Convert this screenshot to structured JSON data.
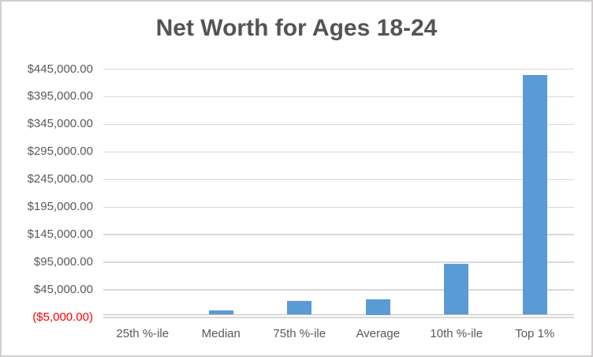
{
  "chart_data": {
    "type": "bar",
    "title": "Net Worth for Ages 18-24",
    "categories": [
      "25th %-ile",
      "Median",
      "75th %-ile",
      "Average",
      "10th %-ile",
      "Top 1%"
    ],
    "values": [
      0,
      8000,
      25500,
      27500,
      93000,
      434500
    ],
    "xlabel": "",
    "ylabel": "",
    "ylim": [
      -5000,
      445000
    ],
    "y_tick_step": 50000,
    "y_ticks": [
      {
        "value": 445000,
        "label": "$445,000.00"
      },
      {
        "value": 395000,
        "label": "$395,000.00"
      },
      {
        "value": 345000,
        "label": "$345,000.00"
      },
      {
        "value": 295000,
        "label": "$295,000.00"
      },
      {
        "value": 245000,
        "label": "$245,000.00"
      },
      {
        "value": 195000,
        "label": "$195,000.00"
      },
      {
        "value": 145000,
        "label": "$145,000.00"
      },
      {
        "value": 95000,
        "label": "$95,000.00"
      },
      {
        "value": 45000,
        "label": "$45,000.00"
      },
      {
        "value": -5000,
        "label": "($5,000.00)",
        "negative": true
      }
    ],
    "grid": true,
    "legend": "none",
    "colors": {
      "bar": "#5B9BD5",
      "gridline": "#D9D9D9",
      "axis_line": "#BFBFBF",
      "tick_label": "#595959",
      "negative_tick_label": "#FF0000",
      "title": "#545454",
      "chart_border": "#D0CECE",
      "background": "#FFFFFF"
    }
  }
}
